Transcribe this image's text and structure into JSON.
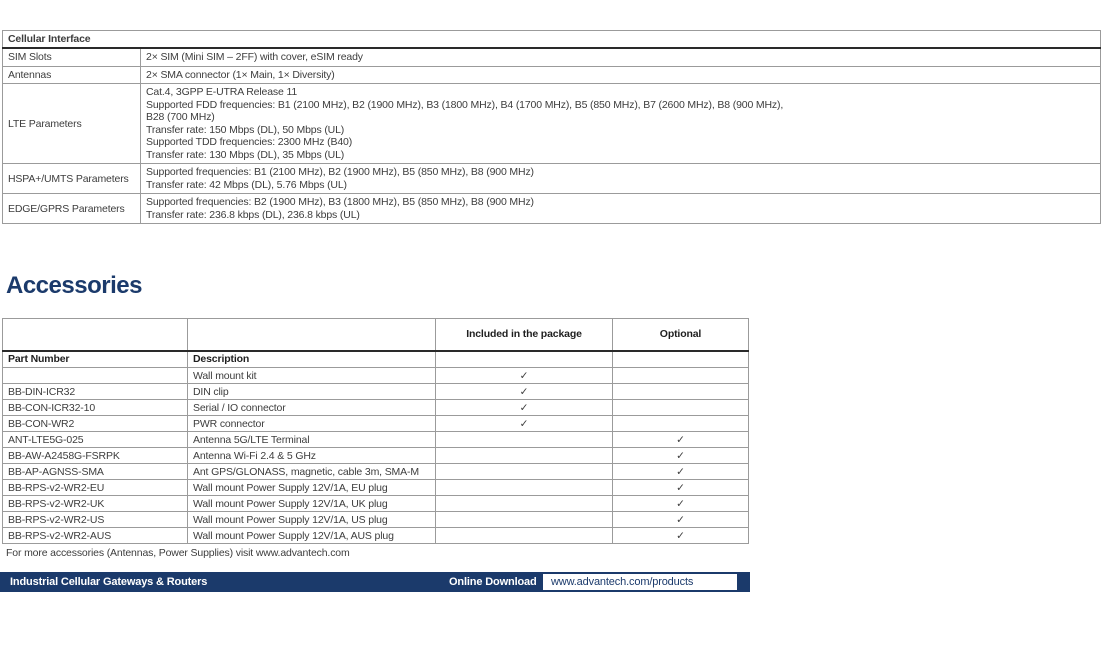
{
  "colors": {
    "navy": "#1b3a6b",
    "border_light": "#9b9b9b",
    "border_dark": "#2a2a2a",
    "text": "#3d3d3d"
  },
  "cellular_table": {
    "title": "Cellular Interface",
    "rows": [
      {
        "label": "SIM Slots",
        "lines": [
          "2× SIM (Mini SIM – 2FF) with cover, eSIM ready"
        ]
      },
      {
        "label": "Antennas",
        "lines": [
          "2× SMA connector (1× Main, 1× Diversity)"
        ]
      },
      {
        "label": "LTE Parameters",
        "lines": [
          "Cat.4, 3GPP E-UTRA Release 11",
          "Supported FDD frequencies: B1 (2100 MHz), B2 (1900 MHz), B3 (1800 MHz), B4 (1700 MHz), B5 (850 MHz), B7 (2600 MHz), B8 (900 MHz),",
          "B28 (700 MHz)",
          "Transfer rate: 150 Mbps (DL), 50 Mbps (UL)",
          "Supported TDD frequencies: 2300 MHz (B40)",
          "Transfer rate: 130 Mbps (DL), 35 Mbps (UL)"
        ]
      },
      {
        "label": "HSPA+/UMTS Parameters",
        "lines": [
          "Supported frequencies: B1 (2100 MHz), B2 (1900 MHz), B5 (850 MHz), B8 (900 MHz)",
          "Transfer rate: 42 Mbps (DL), 5.76 Mbps (UL)"
        ]
      },
      {
        "label": "EDGE/GPRS Parameters",
        "lines": [
          "Supported frequencies: B2 (1900 MHz), B3 (1800 MHz), B5 (850 MHz), B8 (900 MHz)",
          "Transfer rate: 236.8 kbps (DL), 236.8 kbps (UL)"
        ]
      }
    ]
  },
  "accessories": {
    "heading": "Accessories",
    "headers": {
      "included": "Included in the package",
      "optional": "Optional",
      "part_number": "Part Number",
      "description": "Description"
    },
    "check_glyph": "✓",
    "rows": [
      {
        "part": "",
        "desc": "Wall mount kit",
        "included": true,
        "optional": false
      },
      {
        "part": "BB-DIN-ICR32",
        "desc": "DIN clip",
        "included": true,
        "optional": false
      },
      {
        "part": "BB-CON-ICR32-10",
        "desc": "Serial / IO connector",
        "included": true,
        "optional": false
      },
      {
        "part": "BB-CON-WR2",
        "desc": "PWR connector",
        "included": true,
        "optional": false
      },
      {
        "part": "ANT-LTE5G-025",
        "desc": "Antenna 5G/LTE Terminal",
        "included": false,
        "optional": true
      },
      {
        "part": "BB-AW-A2458G-FSRPK",
        "desc": "Antenna Wi-Fi 2.4 & 5 GHz",
        "included": false,
        "optional": true
      },
      {
        "part": "BB-AP-AGNSS-SMA",
        "desc": "Ant GPS/GLONASS, magnetic, cable 3m, SMA-M",
        "included": false,
        "optional": true
      },
      {
        "part": "BB-RPS-v2-WR2-EU",
        "desc": "Wall mount Power Supply 12V/1A, EU plug",
        "included": false,
        "optional": true
      },
      {
        "part": "BB-RPS-v2-WR2-UK",
        "desc": "Wall mount Power Supply 12V/1A, UK plug",
        "included": false,
        "optional": true
      },
      {
        "part": "BB-RPS-v2-WR2-US",
        "desc": "Wall mount Power Supply 12V/1A, US plug",
        "included": false,
        "optional": true
      },
      {
        "part": "BB-RPS-v2-WR2-AUS",
        "desc": "Wall mount Power Supply 12V/1A, AUS plug",
        "included": false,
        "optional": true
      }
    ],
    "footnote": "For more accessories (Antennas, Power Supplies) visit www.advantech.com"
  },
  "footer": {
    "left_label": "Industrial Cellular Gateways & Routers",
    "download_label": "Online Download",
    "download_url": "www.advantech.com/products"
  }
}
